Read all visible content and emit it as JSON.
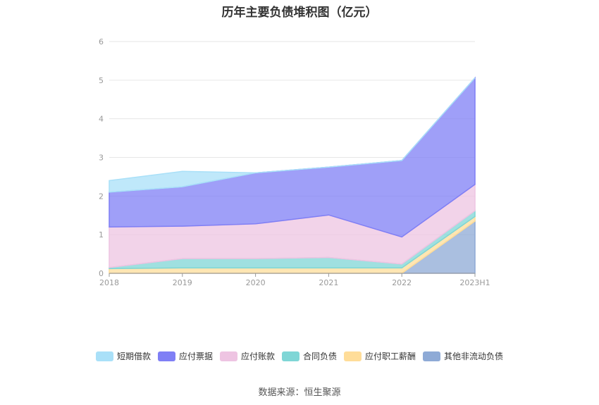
{
  "chart_data": {
    "type": "area",
    "stacked": true,
    "title": "历年主要负债堆积图（亿元）",
    "categories": [
      "2018",
      "2019",
      "2020",
      "2021",
      "2022",
      "2023H1"
    ],
    "ylim": [
      0,
      6
    ],
    "yticks": [
      "0",
      "1",
      "2",
      "3",
      "4",
      "5",
      "6"
    ],
    "grid": true,
    "legend_position": "bottom",
    "series": [
      {
        "name": "其他非流动负债",
        "color": "#8eaad6",
        "values": [
          0,
          0,
          0,
          0,
          0,
          1.35
        ]
      },
      {
        "name": "应付职工薪酬",
        "color": "#ffdd99",
        "values": [
          0.12,
          0.14,
          0.14,
          0.14,
          0.14,
          0.12
        ]
      },
      {
        "name": "合同负债",
        "color": "#7fd6d6",
        "values": [
          0.03,
          0.24,
          0.24,
          0.27,
          0.1,
          0.15
        ]
      },
      {
        "name": "应付账款",
        "color": "#eec4e2",
        "values": [
          1.05,
          0.84,
          0.9,
          1.1,
          0.7,
          0.68
        ]
      },
      {
        "name": "应付票据",
        "color": "#7f7ff5",
        "values": [
          0.9,
          1.02,
          1.32,
          1.24,
          1.98,
          2.76
        ]
      },
      {
        "name": "短期借款",
        "color": "#a9e0f8",
        "values": [
          0.3,
          0.4,
          0,
          0,
          0,
          0
        ]
      }
    ],
    "legend_order": [
      "短期借款",
      "应付票据",
      "应付账款",
      "合同负债",
      "应付职工薪酬",
      "其他非流动负债"
    ]
  },
  "source": "数据来源：恒生聚源"
}
